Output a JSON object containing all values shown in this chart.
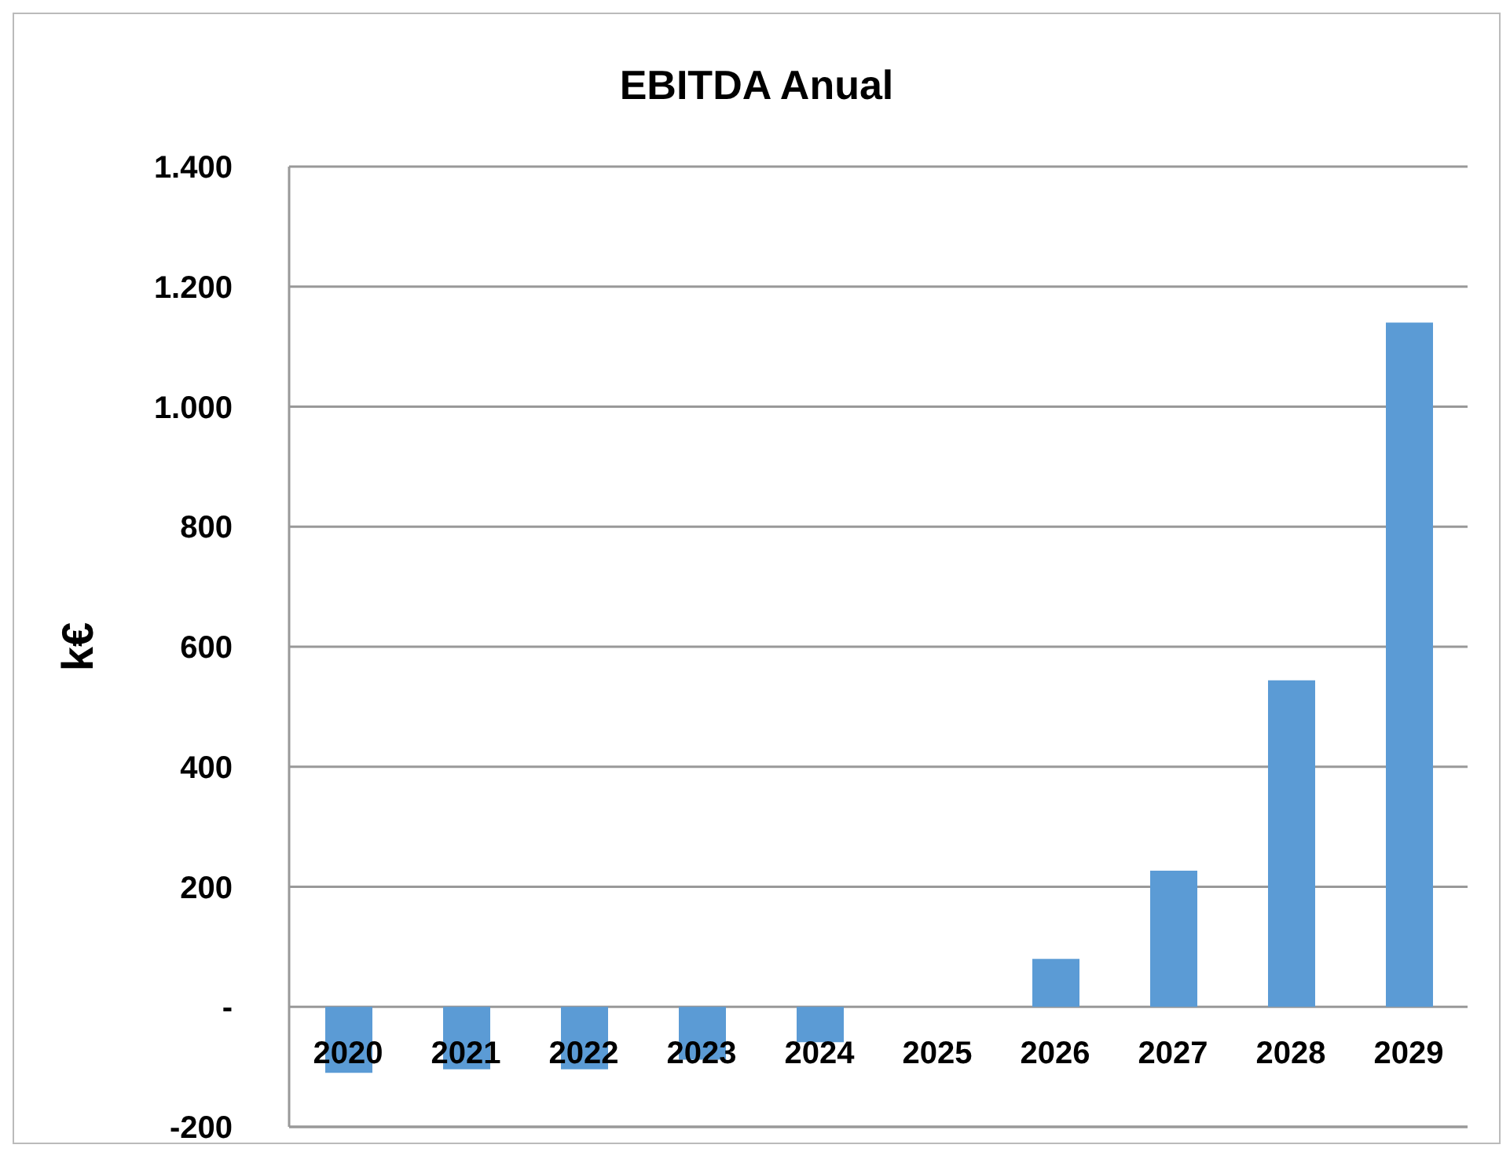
{
  "chart_data": {
    "type": "bar",
    "title": "EBITDA Anual",
    "ylabel": "k€",
    "categories": [
      "2020",
      "2021",
      "2022",
      "2023",
      "2024",
      "2025",
      "2026",
      "2027",
      "2028",
      "2029"
    ],
    "values": [
      -110,
      -104,
      -104,
      -88,
      -59,
      0,
      80,
      227,
      544,
      1140
    ],
    "color": "#5b9bd5",
    "ylim": [
      -200,
      1400
    ],
    "yticks": [
      {
        "value": -200,
        "label": "-200"
      },
      {
        "value": 0,
        "label": "-"
      },
      200,
      400,
      600,
      800,
      {
        "value": 1000,
        "label": "1.000"
      },
      {
        "value": 1200,
        "label": "1.200"
      },
      {
        "value": 1400,
        "label": "1.400"
      }
    ],
    "grid": "y",
    "legend": false
  }
}
